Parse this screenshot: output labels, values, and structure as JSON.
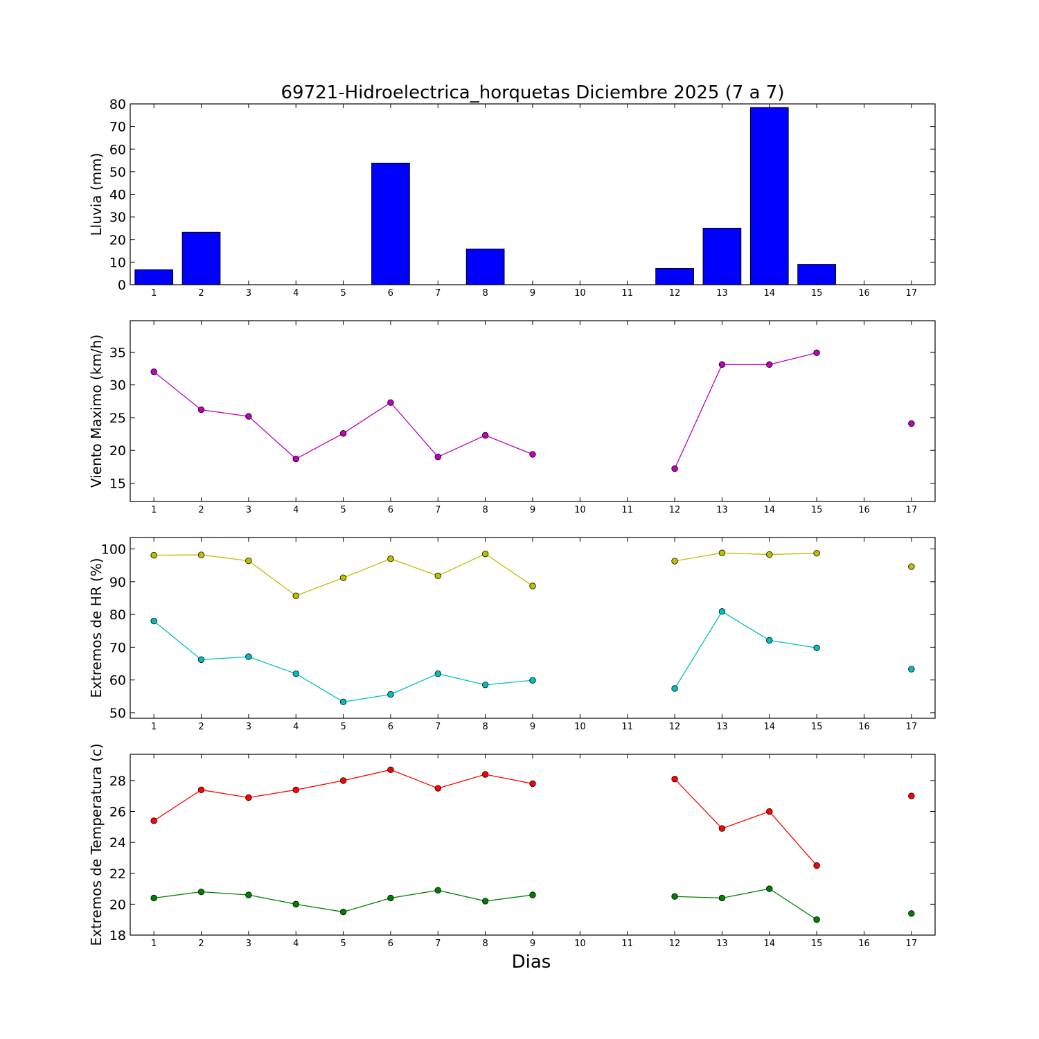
{
  "chart_data": [
    {
      "type": "bar",
      "title": "69721-Hidroelectrica_horquetas Diciembre 2025  (7 a 7)",
      "xlabel": "",
      "ylabel": "Lluvia (mm)",
      "categories": [
        "1",
        "2",
        "3",
        "4",
        "5",
        "6",
        "7",
        "8",
        "9",
        "10",
        "11",
        "12",
        "13",
        "14",
        "15",
        "16",
        "17"
      ],
      "x": [
        1,
        2,
        3,
        4,
        5,
        6,
        7,
        8,
        9,
        10,
        11,
        12,
        13,
        14,
        15,
        16,
        17
      ],
      "values": [
        6.6,
        23.2,
        0,
        0,
        0,
        53.8,
        0,
        15.8,
        0,
        null,
        null,
        7.2,
        25.0,
        78.4,
        9.0,
        null,
        0
      ],
      "xlim": [
        0.5,
        17.5
      ],
      "ylim": [
        0,
        80
      ],
      "yticks": [
        0,
        10,
        20,
        30,
        40,
        50,
        60,
        70,
        80
      ],
      "colors": {
        "bar": "#0000ff"
      },
      "grid": false
    },
    {
      "type": "line",
      "ylabel": "Viento Maximo (km/h)",
      "categories": [
        "1",
        "2",
        "3",
        "4",
        "5",
        "6",
        "7",
        "8",
        "9",
        "10",
        "11",
        "12",
        "13",
        "14",
        "15",
        "16",
        "17"
      ],
      "x": [
        1,
        2,
        3,
        4,
        5,
        6,
        7,
        8,
        9,
        10,
        11,
        12,
        13,
        14,
        15,
        16,
        17
      ],
      "series": [
        {
          "values": [
            32.0,
            26.2,
            25.2,
            18.7,
            22.6,
            27.3,
            19.0,
            22.3,
            19.4,
            null,
            null,
            17.2,
            33.1,
            33.1,
            34.9,
            null,
            24.1
          ],
          "color": "#bf00bf"
        }
      ],
      "xlim": [
        0.5,
        17.5
      ],
      "ylim": [
        12.2,
        39.8
      ],
      "yticks": [
        15,
        20,
        25,
        30,
        35
      ],
      "grid": false
    },
    {
      "type": "line",
      "ylabel": "Extremos de HR (%)",
      "categories": [
        "1",
        "2",
        "3",
        "4",
        "5",
        "6",
        "7",
        "8",
        "9",
        "10",
        "11",
        "12",
        "13",
        "14",
        "15",
        "16",
        "17"
      ],
      "x": [
        1,
        2,
        3,
        4,
        5,
        6,
        7,
        8,
        9,
        10,
        11,
        12,
        13,
        14,
        15,
        16,
        17
      ],
      "series": [
        {
          "values": [
            98.1,
            98.2,
            96.4,
            85.7,
            91.2,
            97.0,
            91.8,
            98.5,
            88.7,
            null,
            null,
            96.3,
            98.8,
            98.3,
            98.7,
            null,
            94.6
          ],
          "color": "#bfbf00"
        },
        {
          "values": [
            78.0,
            66.2,
            67.1,
            61.9,
            53.3,
            55.6,
            61.9,
            58.5,
            59.9,
            null,
            null,
            57.4,
            80.9,
            72.1,
            69.8,
            null,
            63.3
          ],
          "color": "#00bfbf"
        }
      ],
      "xlim": [
        0.5,
        17.5
      ],
      "ylim": [
        48.3,
        103.5
      ],
      "yticks": [
        50,
        60,
        70,
        80,
        90,
        100
      ],
      "grid": false
    },
    {
      "type": "line",
      "ylabel": "Extremos de Temperatura (c)",
      "xlabel": "Dias",
      "categories": [
        "1",
        "2",
        "3",
        "4",
        "5",
        "6",
        "7",
        "8",
        "9",
        "10",
        "11",
        "12",
        "13",
        "14",
        "15",
        "16",
        "17"
      ],
      "x": [
        1,
        2,
        3,
        4,
        5,
        6,
        7,
        8,
        9,
        10,
        11,
        12,
        13,
        14,
        15,
        16,
        17
      ],
      "series": [
        {
          "values": [
            25.4,
            27.4,
            26.9,
            27.4,
            28.0,
            28.7,
            27.5,
            28.4,
            27.8,
            null,
            null,
            28.1,
            24.9,
            26.0,
            22.5,
            null,
            27.0
          ],
          "color": "#ff0000"
        },
        {
          "values": [
            20.4,
            20.8,
            20.6,
            20.0,
            19.5,
            20.4,
            20.9,
            20.2,
            20.6,
            null,
            null,
            20.5,
            20.4,
            21.0,
            19.0,
            null,
            19.4
          ],
          "color": "#008000"
        }
      ],
      "xlim": [
        0.5,
        17.5
      ],
      "ylim": [
        18,
        29.7
      ],
      "yticks": [
        18,
        20,
        22,
        24,
        26,
        28
      ],
      "grid": false
    }
  ]
}
